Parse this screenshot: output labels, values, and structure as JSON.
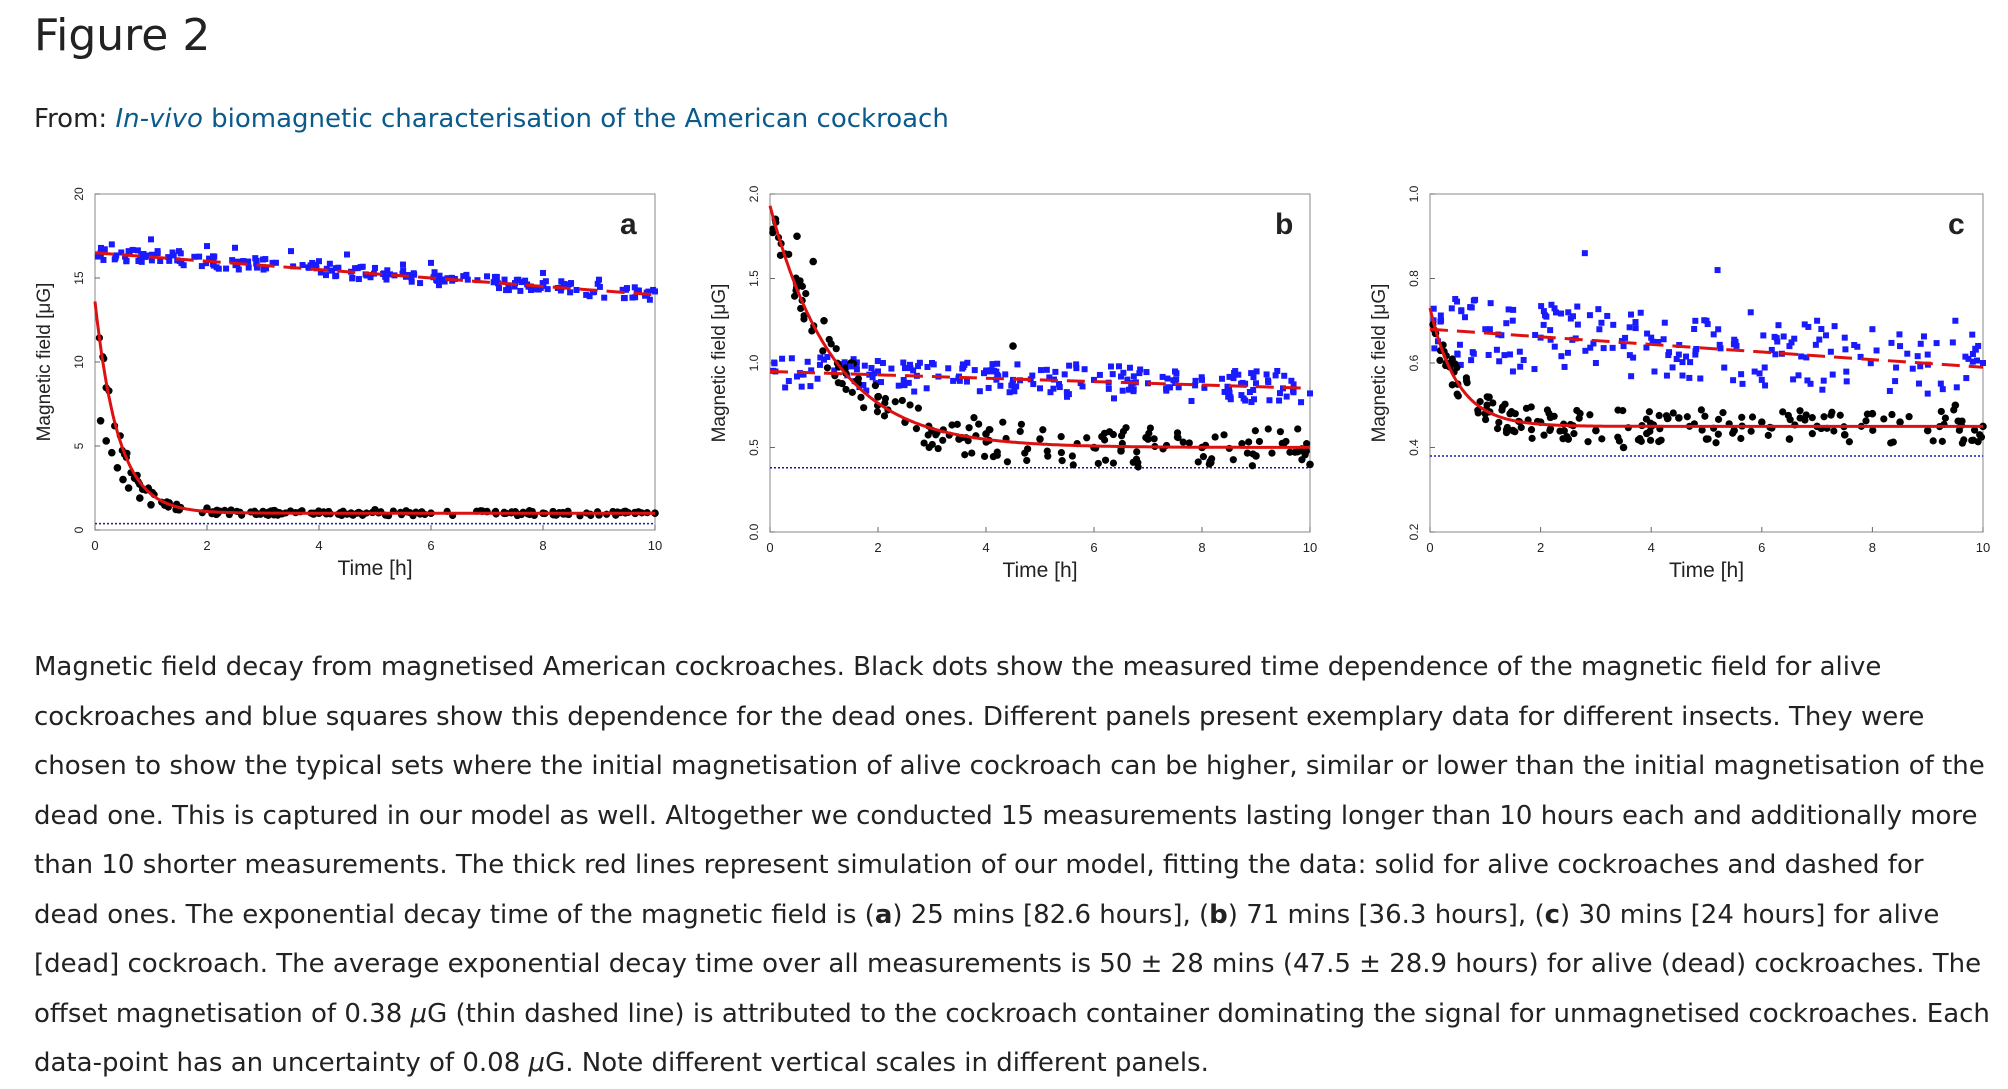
{
  "page": {
    "title": "Figure 2",
    "from_prefix": "From: ",
    "from_link_italic": "In-vivo",
    "from_link_rest": " biomagnetic characterisation of the American cockroach"
  },
  "caption": {
    "s1": "Magnetic field decay from magnetised American cockroaches. Black dots show the measured time dependence of the magnetic field for alive cockroaches and blue squares show this dependence for the dead ones. Different panels present exemplary data for different insects. They were chosen to show the typical sets where the initial magnetisation of alive cockroach can be higher, similar or lower than the initial magnetisation of the dead one. This is captured in our model as well. Altogether we conducted 15 measurements lasting longer than 10 hours each and additionally more than 10 shorter measurements. The thick red lines represent simulation of our model, fitting the data: solid for alive cockroaches and dashed for dead ones. The exponential decay time of the magnetic field is (",
    "a": "a",
    "s2": ") 25 mins [82.6 hours], (",
    "b": "b",
    "s3": ") 71 mins [36.3 hours], (",
    "c": "c",
    "s4": ") 30 mins [24 hours] for alive [dead] cockroach. The average exponential decay time over all measurements is 50 ± 28 mins (47.5 ± 28.9 hours) for alive (dead) cockroaches. The offset magnetisation of 0.38 ",
    "mu1": "μ",
    "s5": "G (thin dashed line) is attributed to the cockroach container dominating the signal for unmagnetised cockroaches. Each data-point has an uncertainty of 0.08 ",
    "mu2": "μ",
    "s6": "G. Note different vertical scales in different panels."
  },
  "colors": {
    "alive": "#000000",
    "dead": "#1a1aff",
    "fit": "#dd1111",
    "offset": "#1a1aaa",
    "link": "#0b5a8c"
  },
  "chart_data": [
    {
      "type": "scatter",
      "panel_label": "a",
      "xlabel": "Time [h]",
      "ylabel": "Magnetic field [μG]",
      "xlim": [
        0,
        10
      ],
      "ylim": [
        0,
        20
      ],
      "xticks": [
        "0",
        "2",
        "4",
        "6",
        "8",
        "10"
      ],
      "yticks": [
        "0",
        "5",
        "10",
        "15",
        "20"
      ],
      "grid": false,
      "offset_line": 0.38,
      "alive_fit": {
        "a0": 13.6,
        "tau_h": 0.417,
        "offset": 1.0
      },
      "dead_fit": {
        "a0": 16.5,
        "end": 14.0
      },
      "series": [
        {
          "values": [
            [
              0.1,
              6.5
            ],
            [
              0.2,
              5.3
            ],
            [
              0.3,
              4.6
            ],
            [
              0.4,
              3.7
            ],
            [
              0.5,
              3.0
            ],
            [
              0.6,
              2.5
            ],
            [
              0.8,
              1.9
            ],
            [
              1.0,
              1.5
            ],
            [
              1.5,
              1.2
            ],
            [
              2,
              1.3
            ],
            [
              3,
              1.1
            ],
            [
              4,
              1.0
            ],
            [
              5,
              1.2
            ],
            [
              6,
              1.0
            ],
            [
              7,
              1.1
            ],
            [
              8,
              1.0
            ],
            [
              9,
              0.9
            ],
            [
              10,
              1.0
            ]
          ]
        },
        {
          "values": [
            [
              0.1,
              16.5
            ],
            [
              0.3,
              17.0
            ],
            [
              0.6,
              16.6
            ],
            [
              1.0,
              17.3
            ],
            [
              1.5,
              16.6
            ],
            [
              2.0,
              16.9
            ],
            [
              2.5,
              16.8
            ],
            [
              3.0,
              16.1
            ],
            [
              3.5,
              16.6
            ],
            [
              4.0,
              16.0
            ],
            [
              4.5,
              16.4
            ],
            [
              5.0,
              15.6
            ],
            [
              5.5,
              15.8
            ],
            [
              6.0,
              15.9
            ],
            [
              7.0,
              15.1
            ],
            [
              7.5,
              14.7
            ],
            [
              8.0,
              15.3
            ],
            [
              8.5,
              14.7
            ],
            [
              9.0,
              14.9
            ],
            [
              9.5,
              14.4
            ],
            [
              10.0,
              14.2
            ]
          ]
        }
      ]
    },
    {
      "type": "scatter",
      "panel_label": "b",
      "xlabel": "Time [h]",
      "ylabel": "Magnetic field [μG]",
      "xlim": [
        0,
        10
      ],
      "ylim": [
        0,
        2.0
      ],
      "xticks": [
        "0",
        "2",
        "4",
        "6",
        "8",
        "10"
      ],
      "yticks": [
        "0.0",
        "0.5",
        "1.0",
        "1.5",
        "2.0"
      ],
      "grid": false,
      "offset_line": 0.38,
      "alive_fit": {
        "a0": 1.93,
        "tau_h": 1.18,
        "offset": 0.5
      },
      "dead_fit": {
        "a0": 0.95,
        "end": 0.85
      },
      "series": [
        {
          "values": [
            [
              0.1,
              1.85
            ],
            [
              0.5,
              1.75
            ],
            [
              0.8,
              1.6
            ],
            [
              1.0,
              1.25
            ],
            [
              1.5,
              1.0
            ],
            [
              2.0,
              0.8
            ],
            [
              2.5,
              0.65
            ],
            [
              3.0,
              0.6
            ],
            [
              3.5,
              0.55
            ],
            [
              4.0,
              0.58
            ],
            [
              4.5,
              1.1
            ],
            [
              5.0,
              0.55
            ],
            [
              6.0,
              0.5
            ],
            [
              6.5,
              0.48
            ],
            [
              7.0,
              0.55
            ],
            [
              8.0,
              0.5
            ],
            [
              9.0,
              0.45
            ],
            [
              10.0,
              0.4
            ]
          ]
        },
        {
          "values": [
            [
              0.1,
              0.95
            ],
            [
              0.5,
              0.92
            ],
            [
              1.0,
              1.02
            ],
            [
              1.5,
              0.98
            ],
            [
              2.0,
              0.95
            ],
            [
              2.5,
              0.97
            ],
            [
              3.0,
              1.0
            ],
            [
              3.5,
              0.92
            ],
            [
              4.0,
              0.95
            ],
            [
              4.5,
              0.9
            ],
            [
              5.0,
              0.85
            ],
            [
              5.5,
              0.8
            ],
            [
              6.0,
              0.9
            ],
            [
              6.5,
              0.92
            ],
            [
              7.0,
              0.88
            ],
            [
              7.5,
              0.95
            ],
            [
              8.0,
              0.9
            ],
            [
              8.5,
              0.85
            ],
            [
              9.0,
              0.88
            ],
            [
              9.5,
              0.85
            ],
            [
              10.0,
              0.82
            ]
          ]
        }
      ]
    },
    {
      "type": "scatter",
      "panel_label": "c",
      "xlabel": "Time [h]",
      "ylabel": "Magnetic field [μG]",
      "xlim": [
        0,
        10
      ],
      "ylim": [
        0.2,
        1.0
      ],
      "xticks": [
        "0",
        "2",
        "4",
        "6",
        "8",
        "10"
      ],
      "yticks": [
        "0.2",
        "0.4",
        "0.6",
        "0.8",
        "1.0"
      ],
      "grid": false,
      "offset_line": 0.38,
      "alive_fit": {
        "a0": 0.73,
        "tau_h": 0.5,
        "offset": 0.45
      },
      "dead_fit": {
        "a0": 0.68,
        "end": 0.59
      },
      "series": [
        {
          "values": [
            [
              0.1,
              0.67
            ],
            [
              0.3,
              0.6
            ],
            [
              0.5,
              0.55
            ],
            [
              1.0,
              0.48
            ],
            [
              1.5,
              0.44
            ],
            [
              2.0,
              0.46
            ],
            [
              2.5,
              0.42
            ],
            [
              3.0,
              0.44
            ],
            [
              3.5,
              0.4
            ],
            [
              4.0,
              0.45
            ],
            [
              4.5,
              0.47
            ],
            [
              5.0,
              0.42
            ],
            [
              5.5,
              0.44
            ],
            [
              6.0,
              0.46
            ],
            [
              6.5,
              0.42
            ],
            [
              7.0,
              0.45
            ],
            [
              7.5,
              0.43
            ],
            [
              8.0,
              0.48
            ],
            [
              8.5,
              0.46
            ],
            [
              9.0,
              0.44
            ],
            [
              9.5,
              0.5
            ],
            [
              10.0,
              0.45
            ]
          ]
        },
        {
          "values": [
            [
              0.2,
              0.7
            ],
            [
              0.5,
              0.62
            ],
            [
              1.0,
              0.68
            ],
            [
              1.5,
              0.58
            ],
            [
              2.0,
              0.66
            ],
            [
              2.5,
              0.72
            ],
            [
              2.8,
              0.86
            ],
            [
              3.0,
              0.6
            ],
            [
              3.5,
              0.64
            ],
            [
              4.0,
              0.66
            ],
            [
              4.5,
              0.62
            ],
            [
              5.0,
              0.7
            ],
            [
              5.2,
              0.82
            ],
            [
              5.8,
              0.72
            ],
            [
              6.0,
              0.56
            ],
            [
              6.5,
              0.64
            ],
            [
              7.0,
              0.7
            ],
            [
              7.5,
              0.66
            ],
            [
              8.0,
              0.68
            ],
            [
              8.5,
              0.64
            ],
            [
              9.0,
              0.62
            ],
            [
              9.5,
              0.7
            ],
            [
              10.0,
              0.6
            ]
          ]
        }
      ]
    }
  ]
}
